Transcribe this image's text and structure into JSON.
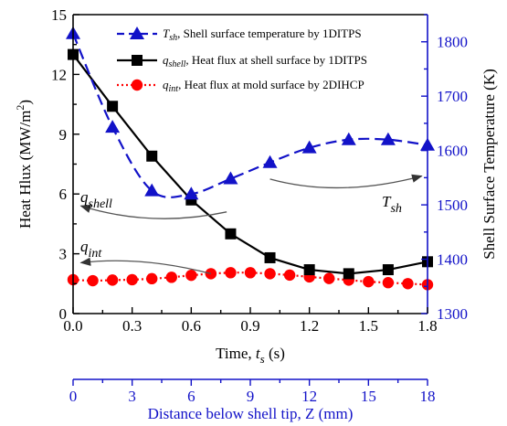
{
  "chart_data": {
    "type": "line",
    "x": [
      0.0,
      0.2,
      0.4,
      0.6,
      0.8,
      1.0,
      1.2,
      1.4,
      1.6,
      1.8
    ],
    "xlabel": "Time, t_s (s)",
    "xlim": [
      0,
      1.8
    ],
    "xticks": [
      "0.0",
      "0.3",
      "0.6",
      "0.9",
      "1.2",
      "1.5",
      "1.8"
    ],
    "ylabel": "Heat Hlux (MW/m²)",
    "ylim": [
      0,
      15
    ],
    "yticks": [
      "0",
      "3",
      "6",
      "9",
      "12",
      "15"
    ],
    "y2label": "Shell Surface Temperature (K)",
    "y2lim": [
      1300,
      1850
    ],
    "y2ticks": [
      "1300",
      "1400",
      "1500",
      "1600",
      "1700",
      "1800"
    ],
    "x2label": "Distance below shell tip, Z (mm)",
    "x2lim": [
      0,
      18
    ],
    "x2ticks": [
      "0",
      "3",
      "6",
      "9",
      "12",
      "15",
      "18"
    ],
    "legend_position": "top",
    "series": [
      {
        "name": "T_sh, Shell surface temperature by 1DITPS",
        "axis": "right",
        "color": "#1212c8",
        "marker": "triangle",
        "line": "dashed",
        "values": [
          1815,
          1643,
          1526,
          1520,
          1548,
          1578,
          1605,
          1620,
          1620,
          1610
        ]
      },
      {
        "name": "q_shell, Heat flux at shell surface by 1DITPS",
        "axis": "left",
        "color": "#000000",
        "marker": "square",
        "line": "solid",
        "values": [
          13.0,
          10.4,
          7.9,
          5.7,
          4.0,
          2.8,
          2.2,
          2.0,
          2.2,
          2.6
        ]
      },
      {
        "name": "q_int, Heat flux at mold surface by 2DIHCP",
        "axis": "left",
        "color": "#ff0000",
        "marker": "circle",
        "line": "dotted",
        "x": [
          0.0,
          0.1,
          0.2,
          0.3,
          0.4,
          0.5,
          0.6,
          0.7,
          0.8,
          0.9,
          1.0,
          1.1,
          1.2,
          1.3,
          1.4,
          1.5,
          1.6,
          1.7,
          1.8
        ],
        "values": [
          1.7,
          1.65,
          1.68,
          1.7,
          1.75,
          1.82,
          1.92,
          2.0,
          2.05,
          2.05,
          2.0,
          1.93,
          1.84,
          1.76,
          1.68,
          1.6,
          1.55,
          1.5,
          1.45
        ]
      }
    ],
    "annotations": {
      "q_shell": {
        "base": "q",
        "sub": "shell"
      },
      "q_int": {
        "base": "q",
        "sub": "int"
      },
      "T_sh": {
        "base": "T",
        "sub": "sh"
      }
    },
    "legend_text": [
      {
        "base": "T",
        "sub": "sh",
        "rest": ", Shell surface temperature by 1DITPS"
      },
      {
        "base": "q",
        "sub": "shell",
        "rest": ", Heat flux at shell surface by 1DITPS"
      },
      {
        "base": "q",
        "sub": "int",
        "rest": ", Heat flux at mold surface by 2DIHCP"
      }
    ]
  }
}
